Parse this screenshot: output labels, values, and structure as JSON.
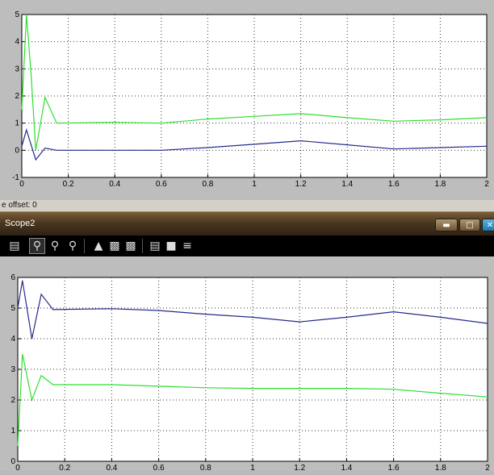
{
  "window": {
    "title": "Scope2",
    "offset_label": "e offset:  0"
  },
  "toolbar": {
    "icons": [
      "print-icon",
      "zoom-icon",
      "zoom-x-icon",
      "zoom-y-icon",
      "autoscale-icon",
      "save-axes-icon",
      "restore-axes-icon",
      "parameters-icon",
      "lock-icon",
      "signal-selector-icon"
    ]
  },
  "colors": {
    "series_green": "#2de02d",
    "series_blue": "#262a8c",
    "plot_bg": "#ffffff",
    "grid": "#333333"
  },
  "chart_data": [
    {
      "type": "line",
      "xlim": [
        0,
        2
      ],
      "ylim": [
        -1,
        5
      ],
      "x_ticks": [
        "0",
        "0.2",
        "0.4",
        "0.6",
        "0.8",
        "1",
        "1.2",
        "1.4",
        "1.6",
        "1.8",
        "2"
      ],
      "y_ticks": [
        "-1",
        "0",
        "1",
        "2",
        "3",
        "4",
        "5"
      ],
      "series": [
        {
          "color": "#2de02d",
          "points": [
            [
              0,
              1.5
            ],
            [
              0.02,
              5
            ],
            [
              0.04,
              2.8
            ],
            [
              0.06,
              0
            ],
            [
              0.1,
              1.95
            ],
            [
              0.15,
              1
            ],
            [
              0.4,
              1.03
            ],
            [
              0.6,
              1
            ],
            [
              0.8,
              1.15
            ],
            [
              1.0,
              1.25
            ],
            [
              1.2,
              1.35
            ],
            [
              1.4,
              1.2
            ],
            [
              1.6,
              1.07
            ],
            [
              1.8,
              1.12
            ],
            [
              2.0,
              1.2
            ]
          ]
        },
        {
          "color": "#262a8c",
          "points": [
            [
              0,
              0.15
            ],
            [
              0.02,
              0.75
            ],
            [
              0.04,
              0.2
            ],
            [
              0.06,
              -0.35
            ],
            [
              0.1,
              0.08
            ],
            [
              0.15,
              0
            ],
            [
              0.4,
              0
            ],
            [
              0.6,
              0
            ],
            [
              0.8,
              0.1
            ],
            [
              1.0,
              0.22
            ],
            [
              1.2,
              0.35
            ],
            [
              1.4,
              0.2
            ],
            [
              1.6,
              0.05
            ],
            [
              1.8,
              0.1
            ],
            [
              2.0,
              0.15
            ]
          ]
        }
      ]
    },
    {
      "type": "line",
      "xlim": [
        0,
        2
      ],
      "ylim": [
        0,
        6
      ],
      "x_ticks": [
        "0",
        "0.2",
        "0.4",
        "0.6",
        "0.8",
        "1",
        "1.2",
        "1.4",
        "1.6",
        "1.8",
        "2"
      ],
      "y_ticks": [
        "0",
        "1",
        "2",
        "3",
        "4",
        "5",
        "6"
      ],
      "series": [
        {
          "color": "#262a8c",
          "points": [
            [
              0,
              5
            ],
            [
              0.02,
              5.9
            ],
            [
              0.06,
              4
            ],
            [
              0.1,
              5.45
            ],
            [
              0.15,
              4.95
            ],
            [
              0.4,
              4.98
            ],
            [
              0.6,
              4.92
            ],
            [
              0.8,
              4.8
            ],
            [
              1.0,
              4.7
            ],
            [
              1.2,
              4.55
            ],
            [
              1.4,
              4.7
            ],
            [
              1.6,
              4.88
            ],
            [
              1.8,
              4.7
            ],
            [
              2.0,
              4.5
            ]
          ]
        },
        {
          "color": "#2de02d",
          "points": [
            [
              0,
              0.5
            ],
            [
              0.02,
              3.5
            ],
            [
              0.06,
              2
            ],
            [
              0.1,
              2.8
            ],
            [
              0.15,
              2.5
            ],
            [
              0.4,
              2.5
            ],
            [
              0.6,
              2.45
            ],
            [
              0.8,
              2.4
            ],
            [
              1.0,
              2.38
            ],
            [
              1.2,
              2.38
            ],
            [
              1.4,
              2.38
            ],
            [
              1.6,
              2.35
            ],
            [
              1.8,
              2.22
            ],
            [
              2.0,
              2.1
            ]
          ]
        }
      ]
    }
  ]
}
